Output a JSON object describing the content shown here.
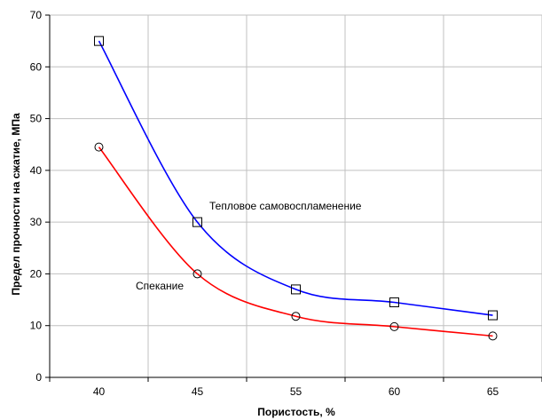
{
  "chart_data": {
    "type": "line",
    "title": "",
    "xlabel": "Пористость, %",
    "ylabel": "Предел прочности на сжатие, МПа",
    "categories": [
      "40",
      "45",
      "55",
      "60",
      "65"
    ],
    "ylim": [
      0,
      70
    ],
    "yticks": [
      "0",
      "10",
      "20",
      "30",
      "40",
      "50",
      "60",
      "70"
    ],
    "grid": true,
    "series": [
      {
        "name": "Тепловое самовоспламенение",
        "values": [
          65,
          30,
          17,
          14.5,
          12
        ],
        "color": "#0000ff",
        "marker": "square"
      },
      {
        "name": "Спекание",
        "values": [
          44.5,
          20,
          11.8,
          9.8,
          8
        ],
        "color": "#ff0000",
        "marker": "circle"
      }
    ],
    "annotations": [
      {
        "text": "Тепловое самовоспламенение",
        "series": 0
      },
      {
        "text": "Спекание",
        "series": 1
      }
    ]
  }
}
